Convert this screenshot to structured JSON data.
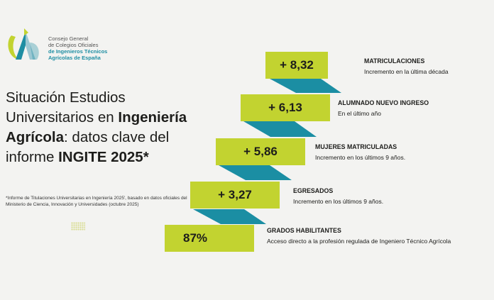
{
  "brand": {
    "line1": "Consejo General",
    "line2": "de Colegios Oficiales",
    "line3": "de Ingenieros Técnicos",
    "line4": "Agrícolas de España",
    "color_accent": "#1f8ea3",
    "color_green": "#c2d330"
  },
  "headline": {
    "p1": "Situación Estudios Universitarios en ",
    "p2": "Ingeniería Agrícola",
    "p3": ": datos clave del informe ",
    "p4": "INGITE 2025*"
  },
  "footnote": "*Informe de Titulaciones Universitarias en Ingeniería 2025', basado en datos oficiales del Ministerio de Ciencia, Innovación y Universidades (octubre 2025)",
  "steps": [
    {
      "value": "+ 8,32",
      "title": "MATRICULACIONES",
      "desc": "Incremento en la última década"
    },
    {
      "value": "+ 6,13",
      "title": "ALUMNADO NUEVO INGRESO",
      "desc": "En el último año"
    },
    {
      "value": "+ 5,86",
      "title": "MUJERES MATRICULADAS",
      "desc": "Incremento en los últimos 9 años."
    },
    {
      "value": "+ 3,27",
      "title": "EGRESADOS",
      "desc": "Incremento en los últimos 9 años."
    },
    {
      "value": "87%",
      "title": "GRADOS HABILITANTES",
      "desc": "Acceso directo a la profesión regulada de Ingeniero Técnico Agrícola"
    }
  ]
}
